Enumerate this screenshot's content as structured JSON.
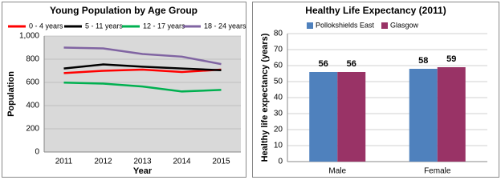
{
  "chart_data": [
    {
      "type": "line",
      "title": "Young Population by Age Group",
      "x_label": "Year",
      "y_label": "Population",
      "categories": [
        "2011",
        "2012",
        "2013",
        "2014",
        "2015"
      ],
      "series": [
        {
          "name": "0 - 4 years",
          "color": "#ff0000",
          "values": [
            680,
            700,
            710,
            690,
            710
          ]
        },
        {
          "name": "5 - 11 years",
          "color": "#000000",
          "values": [
            720,
            755,
            735,
            720,
            705
          ]
        },
        {
          "name": "12 - 17 years",
          "color": "#00b050",
          "values": [
            598,
            590,
            565,
            522,
            535
          ]
        },
        {
          "name": "18 - 24 years",
          "color": "#8064a2",
          "values": [
            900,
            893,
            845,
            822,
            758
          ]
        }
      ],
      "ylim": [
        0,
        1000
      ],
      "yticks": [
        0,
        200,
        400,
        600,
        800,
        {
          "value": 1000,
          "label": "1,000"
        }
      ],
      "grid": true
    },
    {
      "type": "bar",
      "title": "Healthy Life Expectancy (2011)",
      "y_label": "Healthy life expectancy (years)",
      "categories": [
        "Male",
        "Female"
      ],
      "series": [
        {
          "name": "Pollokshields East",
          "color": "#4f81bd",
          "values": [
            56,
            58
          ]
        },
        {
          "name": "Glasgow",
          "color": "#993366",
          "values": [
            56,
            59
          ]
        }
      ],
      "ylim": [
        0,
        80
      ],
      "yticks": [
        0,
        10,
        20,
        30,
        40,
        50,
        60,
        70,
        80
      ],
      "grid": true
    }
  ]
}
